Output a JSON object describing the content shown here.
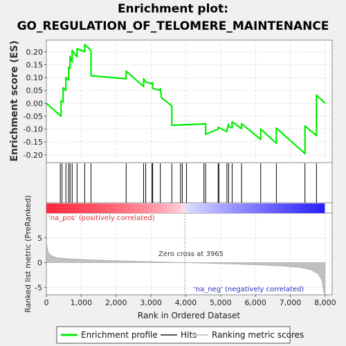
{
  "title_line1": "Enrichment plot:",
  "title_line2": "GO_REGULATION_OF_TELOMERE_MAINTENANCE",
  "chart_data": {
    "type": "line",
    "es_plot": {
      "ylabel": "Enrichment score (ES)",
      "ylim": [
        -0.23,
        0.245
      ],
      "yticks": [
        "0.20",
        "0.15",
        "0.10",
        "0.05",
        "0.00",
        "-0.05",
        "-0.10",
        "-0.15",
        "-0.20"
      ],
      "ytick_values": [
        0.2,
        0.15,
        0.1,
        0.05,
        0.0,
        -0.05,
        -0.1,
        -0.15,
        -0.2
      ],
      "grid": true,
      "series": [
        {
          "name": "Enrichment profile",
          "color": "#00ee00",
          "x": [
            0,
            420,
            420,
            480,
            480,
            560,
            560,
            640,
            640,
            680,
            680,
            740,
            740,
            880,
            880,
            1100,
            1100,
            1280,
            1280,
            2290,
            2290,
            2790,
            2790,
            2850,
            2850,
            3030,
            3030,
            3050,
            3050,
            3270,
            3270,
            3300,
            3300,
            3600,
            3600,
            4520,
            4520,
            4570,
            4570,
            4930,
            4930,
            5180,
            5180,
            5230,
            5230,
            5330,
            5330,
            5600,
            5600,
            6150,
            6150,
            6600,
            6600,
            7420,
            7420,
            7750,
            7750,
            8000
          ],
          "y": [
            0.0,
            -0.05,
            0.01,
            0.005,
            0.06,
            0.05,
            0.1,
            0.09,
            0.14,
            0.135,
            0.182,
            0.16,
            0.205,
            0.18,
            0.212,
            0.2,
            0.228,
            0.205,
            0.107,
            0.095,
            0.125,
            0.065,
            0.095,
            0.085,
            0.083,
            0.075,
            0.08,
            0.078,
            0.058,
            0.05,
            0.057,
            0.025,
            0.022,
            -0.01,
            -0.085,
            -0.08,
            -0.078,
            -0.08,
            -0.12,
            -0.1,
            -0.093,
            -0.11,
            -0.104,
            -0.08,
            -0.09,
            -0.095,
            -0.072,
            -0.098,
            -0.079,
            -0.14,
            -0.1,
            -0.155,
            -0.096,
            -0.195,
            -0.088,
            -0.125,
            0.032,
            0.0
          ]
        }
      ]
    },
    "hits": {
      "name": "Hits",
      "x": [
        400,
        450,
        560,
        640,
        680,
        740,
        880,
        1100,
        1280,
        2290,
        2790,
        2850,
        3030,
        3050,
        3270,
        3600,
        3850,
        3900,
        4020,
        4520,
        4570,
        4930,
        4950,
        5180,
        5230,
        5330,
        5600,
        6150,
        6600,
        7420,
        7750
      ]
    },
    "rank_metric": {
      "name": "Ranking metric scores",
      "ylabel": "Ranked list metric (PreRanked)",
      "ylim": [
        -6.5,
        10
      ],
      "yticks": [
        "5",
        "0",
        "-5"
      ],
      "ytick_values": [
        5,
        0,
        -5
      ],
      "x": [
        0,
        20,
        60,
        150,
        300,
        600,
        1200,
        2000,
        3000,
        3965,
        5000,
        6000,
        6800,
        7300,
        7600,
        7800,
        7900,
        7960,
        8000
      ],
      "y": [
        5.0,
        3.2,
        2.0,
        1.4,
        1.0,
        0.8,
        0.6,
        0.4,
        0.2,
        0.0,
        -0.2,
        -0.45,
        -0.7,
        -1.0,
        -1.5,
        -2.3,
        -3.5,
        -6.0,
        -6.5
      ]
    },
    "xlabel": "Rank in Ordered Dataset",
    "xlim": [
      0,
      8200
    ],
    "xticks": [
      "0",
      "1,000",
      "2,000",
      "3,000",
      "4,000",
      "5,000",
      "6,000",
      "7,000",
      "8,000"
    ],
    "xtick_values": [
      0,
      1000,
      2000,
      3000,
      4000,
      5000,
      6000,
      7000,
      8000
    ],
    "zero_cross_x": 3965,
    "zero_cross_label": "Zero cross at 3965",
    "pos_label": "'na_pos' (positively correlated)",
    "neg_label": "'na_neg' (negatively correlated)",
    "legend": [
      "Enrichment profile",
      "Hits",
      "Ranking metric scores"
    ],
    "colors": {
      "profile": "#00ee00",
      "hits": "#000000",
      "metric_fill": "#c0c0c0",
      "pos_strong": "#ff0000",
      "neg_strong": "#0000ff",
      "grid": "#dddddd"
    }
  }
}
